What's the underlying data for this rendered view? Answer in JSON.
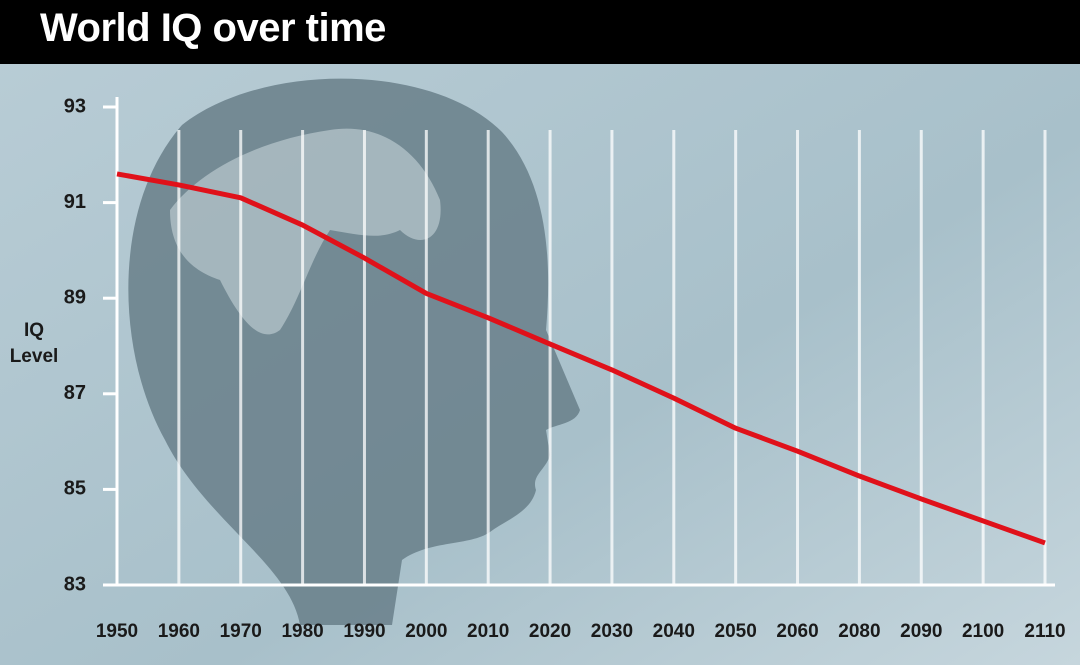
{
  "chart_data": {
    "type": "line",
    "title": "World IQ over time",
    "y_label": "IQ Level",
    "categories": [
      "1950",
      "1960",
      "1970",
      "1980",
      "1990",
      "2000",
      "2010",
      "2020",
      "2030",
      "2040",
      "2050",
      "2060",
      "2080",
      "2090",
      "2100",
      "2110"
    ],
    "series": [
      {
        "name": "World IQ",
        "color": "#e0111a",
        "values": [
          91.6,
          91.37,
          91.1,
          90.53,
          89.84,
          89.1,
          88.59,
          88.04,
          87.5,
          86.91,
          86.28,
          85.8,
          85.28,
          84.8,
          84.34,
          83.88
        ]
      }
    ],
    "ylim": [
      83,
      93
    ],
    "yticks": [
      83,
      85,
      87,
      89,
      91,
      93
    ],
    "grid": true
  }
}
